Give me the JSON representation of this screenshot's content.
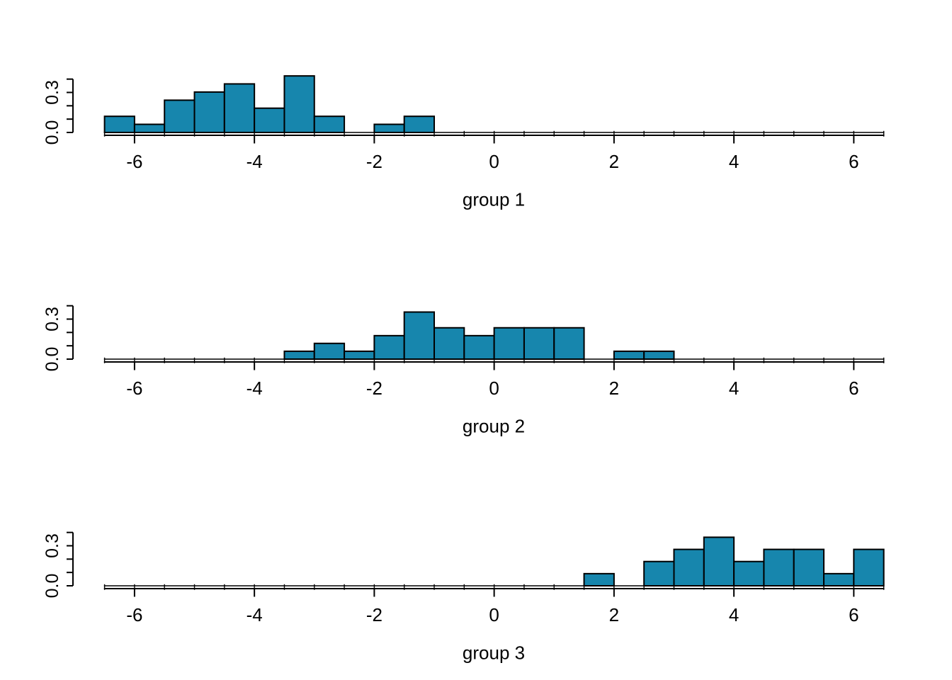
{
  "figure": {
    "background": "#ffffff",
    "bar_fill": "#1786AD",
    "bar_stroke": "#000000",
    "axis_color": "#000000",
    "text_color": "#000000"
  },
  "chart_data": [
    {
      "type": "bar",
      "subtype": "histogram",
      "title": "",
      "xlabel": "group 1",
      "ylabel": "",
      "xlim": [
        -6.5,
        6.5
      ],
      "ylim": [
        0,
        0.4
      ],
      "x_ticks": [
        -6,
        -4,
        -2,
        0,
        2,
        4,
        6
      ],
      "x_tick_labels": [
        "-6",
        "-4",
        "-2",
        "0",
        "2",
        "4",
        "6"
      ],
      "minor_tick_step": 0.5,
      "y_ticks": [
        0,
        0.1,
        0.2,
        0.3,
        0.4
      ],
      "y_tick_labels": [
        "0.0",
        "",
        "",
        "0.3",
        ""
      ],
      "bin_width": 0.5,
      "bins_start": -6.5,
      "n": 33,
      "counts": [
        2,
        1,
        4,
        5,
        6,
        3,
        7,
        2,
        0,
        1,
        2
      ],
      "densities": [
        0.121,
        0.061,
        0.242,
        0.303,
        0.364,
        0.182,
        0.424,
        0.121,
        0,
        0.061,
        0.121
      ]
    },
    {
      "type": "bar",
      "subtype": "histogram",
      "title": "",
      "xlabel": "group 2",
      "ylabel": "",
      "xlim": [
        -6.5,
        6.5
      ],
      "ylim": [
        0,
        0.4
      ],
      "x_ticks": [
        -6,
        -4,
        -2,
        0,
        2,
        4,
        6
      ],
      "x_tick_labels": [
        "-6",
        "-4",
        "-2",
        "0",
        "2",
        "4",
        "6"
      ],
      "minor_tick_step": 0.5,
      "y_ticks": [
        0,
        0.1,
        0.2,
        0.3,
        0.4
      ],
      "y_tick_labels": [
        "0.0",
        "",
        "",
        "0.3",
        ""
      ],
      "bin_width": 0.5,
      "bins_start": -3.5,
      "n": 34,
      "counts": [
        1,
        2,
        1,
        3,
        6,
        4,
        3,
        4,
        4,
        4,
        0,
        1,
        1
      ],
      "densities": [
        0.059,
        0.118,
        0.059,
        0.176,
        0.353,
        0.235,
        0.176,
        0.235,
        0.235,
        0.235,
        0,
        0.059,
        0.059
      ]
    },
    {
      "type": "bar",
      "subtype": "histogram",
      "title": "",
      "xlabel": "group 3",
      "ylabel": "",
      "xlim": [
        -6.5,
        6.5
      ],
      "ylim": [
        0,
        0.4
      ],
      "x_ticks": [
        -6,
        -4,
        -2,
        0,
        2,
        4,
        6
      ],
      "x_tick_labels": [
        "-6",
        "-4",
        "-2",
        "0",
        "2",
        "4",
        "6"
      ],
      "minor_tick_step": 0.5,
      "y_ticks": [
        0,
        0.1,
        0.2,
        0.3,
        0.4
      ],
      "y_tick_labels": [
        "0.0",
        "",
        "",
        "0.3",
        ""
      ],
      "bin_width": 0.5,
      "bins_start": 1.5,
      "n": 22,
      "counts": [
        1,
        0,
        2,
        3,
        4,
        2,
        3,
        3,
        1,
        3
      ],
      "densities": [
        0.091,
        0,
        0.182,
        0.273,
        0.364,
        0.182,
        0.273,
        0.273,
        0.091,
        0.273
      ]
    }
  ]
}
